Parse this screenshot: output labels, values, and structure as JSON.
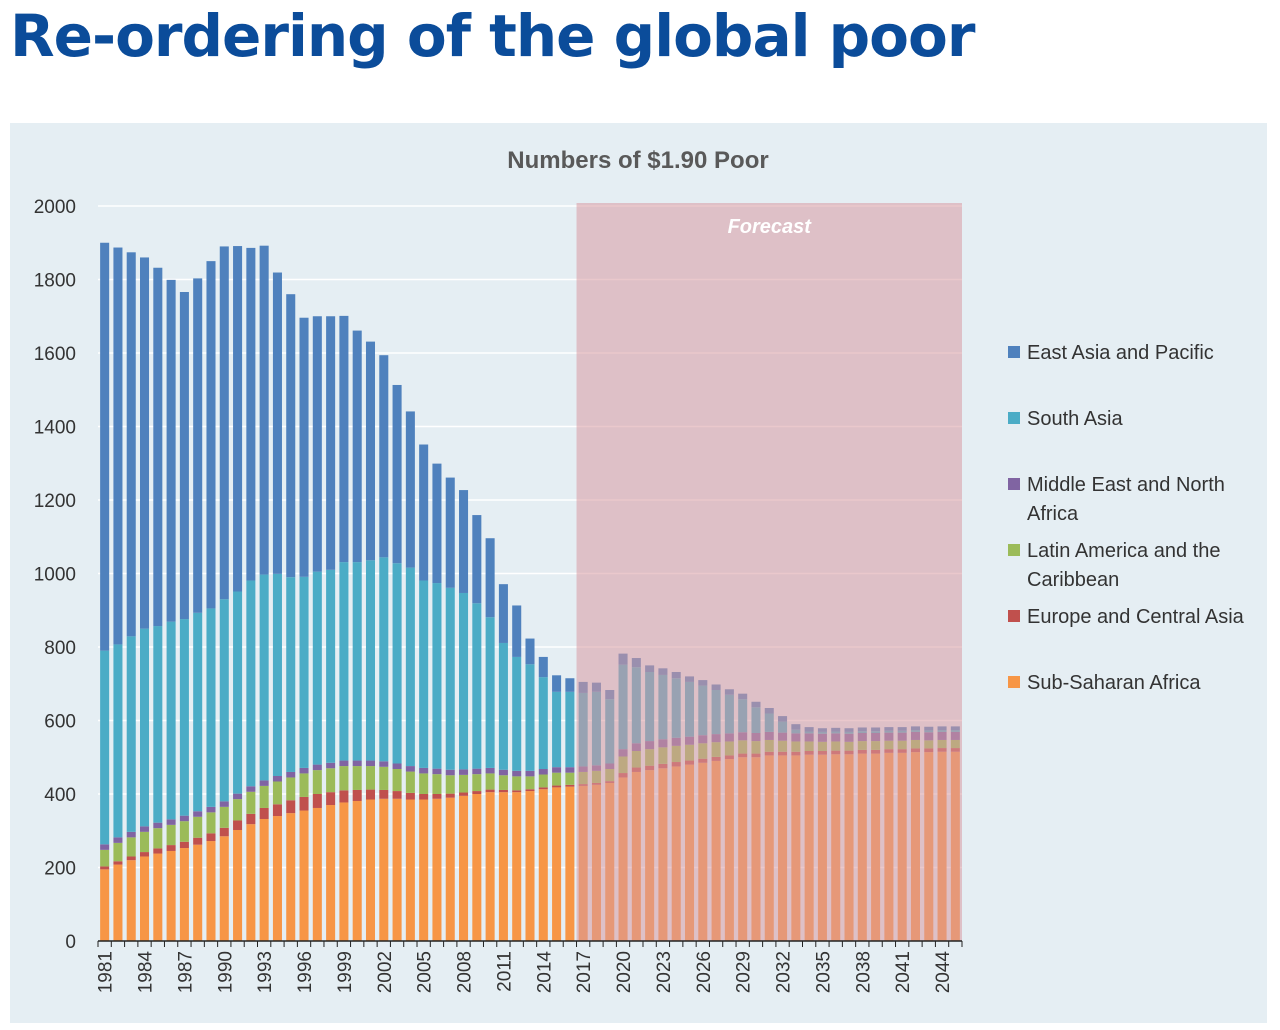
{
  "page": {
    "title": "Re-ordering of the global poor"
  },
  "chart_data": {
    "type": "bar",
    "stacked": true,
    "title": "Numbers of $1.90 Poor",
    "xlabel": "",
    "ylabel": "",
    "ylim": [
      0,
      2000
    ],
    "yticks": [
      0,
      200,
      400,
      600,
      800,
      1000,
      1200,
      1400,
      1600,
      1800,
      2000
    ],
    "grid": "horizontal",
    "legend_position": "right",
    "forecast": {
      "label": "Forecast",
      "start": "2017",
      "end": "2045",
      "color": "#d99aa3"
    },
    "categories": [
      "1981",
      "1982",
      "1983",
      "1984",
      "1985",
      "1986",
      "1987",
      "1988",
      "1989",
      "1990",
      "1991",
      "1992",
      "1993",
      "1994",
      "1995",
      "1996",
      "1997",
      "1998",
      "1999",
      "2000",
      "2001",
      "2002",
      "2003",
      "2004",
      "2005",
      "2006",
      "2007",
      "2008",
      "2009",
      "2010",
      "2011",
      "2012",
      "2013",
      "2014",
      "2015",
      "2016",
      "2017",
      "2018",
      "2019",
      "2020",
      "2021",
      "2022",
      "2023",
      "2024",
      "2025",
      "2026",
      "2027",
      "2028",
      "2029",
      "2030",
      "2031",
      "2032",
      "2033",
      "2034",
      "2035",
      "2036",
      "2037",
      "2038",
      "2039",
      "2040",
      "2041",
      "2042",
      "2043",
      "2044",
      "2045"
    ],
    "tick_labels": [
      "1981",
      "1984",
      "1987",
      "1990",
      "1993",
      "1996",
      "1999",
      "2002",
      "2005",
      "2008",
      "2011",
      "2014",
      "2017",
      "2020",
      "2023",
      "2026",
      "2029",
      "2032",
      "2035",
      "2038",
      "2041",
      "2044"
    ],
    "series": [
      {
        "name": "Sub-Saharan Africa",
        "color": "#f79646",
        "values": [
          195,
          208,
          220,
          230,
          238,
          245,
          253,
          262,
          272,
          285,
          302,
          318,
          332,
          340,
          348,
          355,
          362,
          370,
          377,
          381,
          385,
          387,
          387,
          385,
          385,
          387,
          390,
          395,
          400,
          405,
          405,
          405,
          408,
          413,
          418,
          420,
          422,
          425,
          430,
          445,
          460,
          465,
          470,
          475,
          480,
          485,
          490,
          495,
          500,
          500,
          505,
          505,
          505,
          507,
          507,
          508,
          508,
          510,
          510,
          512,
          512,
          514,
          514,
          515,
          515
        ]
      },
      {
        "name": "Europe and Central Asia",
        "color": "#c0504d",
        "values": [
          8,
          9,
          10,
          12,
          14,
          16,
          17,
          19,
          21,
          23,
          26,
          28,
          30,
          32,
          35,
          37,
          38,
          35,
          33,
          30,
          27,
          24,
          21,
          18,
          15,
          13,
          11,
          9,
          8,
          7,
          6,
          5,
          5,
          5,
          5,
          5,
          5,
          5,
          5,
          12,
          12,
          12,
          12,
          12,
          11,
          11,
          11,
          10,
          10,
          10,
          10,
          10,
          10,
          10,
          10,
          10,
          10,
          10,
          10,
          10,
          10,
          10,
          10,
          10,
          10
        ]
      },
      {
        "name": "Latin America and the Caribbean",
        "color": "#9bbb59",
        "values": [
          45,
          50,
          52,
          55,
          55,
          55,
          56,
          57,
          57,
          57,
          58,
          60,
          60,
          62,
          62,
          64,
          65,
          65,
          66,
          65,
          64,
          63,
          60,
          58,
          56,
          54,
          50,
          48,
          46,
          44,
          40,
          38,
          35,
          35,
          35,
          33,
          33,
          33,
          33,
          45,
          45,
          45,
          45,
          44,
          43,
          42,
          40,
          38,
          36,
          34,
          32,
          30,
          28,
          26,
          25,
          25,
          24,
          24,
          24,
          23,
          23,
          23,
          22,
          22,
          22
        ]
      },
      {
        "name": "Middle East and North Africa",
        "color": "#8064a2",
        "values": [
          15,
          15,
          15,
          15,
          15,
          15,
          15,
          15,
          15,
          15,
          15,
          15,
          15,
          15,
          15,
          15,
          15,
          15,
          15,
          15,
          15,
          15,
          15,
          15,
          15,
          15,
          15,
          15,
          15,
          15,
          15,
          15,
          15,
          15,
          15,
          15,
          15,
          15,
          15,
          20,
          21,
          22,
          22,
          22,
          22,
          22,
          22,
          22,
          22,
          22,
          22,
          22,
          22,
          22,
          22,
          22,
          22,
          22,
          22,
          22,
          22,
          22,
          22,
          22,
          22
        ]
      },
      {
        "name": "South Asia",
        "color": "#4bacc6",
        "values": [
          527,
          525,
          532,
          538,
          535,
          538,
          535,
          540,
          540,
          550,
          550,
          560,
          560,
          550,
          530,
          520,
          525,
          525,
          540,
          540,
          545,
          555,
          545,
          540,
          510,
          505,
          495,
          480,
          450,
          410,
          345,
          310,
          290,
          250,
          205,
          205,
          200,
          200,
          175,
          230,
          207,
          188,
          175,
          162,
          149,
          135,
          120,
          105,
          90,
          70,
          50,
          30,
          10,
          5,
          5,
          5,
          5,
          5,
          5,
          5,
          5,
          5,
          5,
          5,
          5
        ]
      },
      {
        "name": "East Asia and Pacific",
        "color": "#4f81bd",
        "values": [
          1110,
          1080,
          1045,
          1010,
          975,
          930,
          890,
          910,
          945,
          960,
          940,
          905,
          895,
          820,
          770,
          705,
          695,
          690,
          670,
          630,
          595,
          550,
          485,
          425,
          370,
          325,
          300,
          280,
          240,
          215,
          160,
          140,
          70,
          55,
          45,
          37,
          30,
          25,
          25,
          30,
          25,
          18,
          18,
          17,
          15,
          15,
          15,
          15,
          15,
          15,
          15,
          15,
          15,
          12,
          10,
          10,
          10,
          10,
          10,
          10,
          10,
          10,
          10,
          10,
          10
        ]
      }
    ]
  }
}
